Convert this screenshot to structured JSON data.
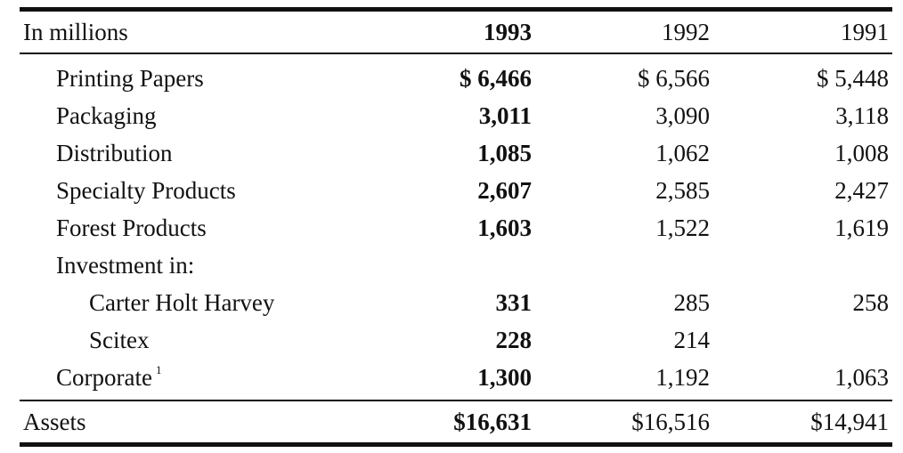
{
  "table": {
    "header": {
      "label": "In millions",
      "col_1993": "1993",
      "col_1992": "1992",
      "col_1991": "1991"
    },
    "rows": [
      {
        "label": "Printing Papers",
        "v1993": "$  6,466",
        "v1992": "$  6,566",
        "v1991": "$  5,448"
      },
      {
        "label": "Packaging",
        "v1993": "3,011",
        "v1992": "3,090",
        "v1991": "3,118"
      },
      {
        "label": "Distribution",
        "v1993": "1,085",
        "v1992": "1,062",
        "v1991": "1,008"
      },
      {
        "label": "Specialty Products",
        "v1993": "2,607",
        "v1992": "2,585",
        "v1991": "2,427"
      },
      {
        "label": "Forest Products",
        "v1993": "1,603",
        "v1992": "1,522",
        "v1991": "1,619"
      },
      {
        "label": "Investment in:",
        "v1993": "",
        "v1992": "",
        "v1991": ""
      },
      {
        "label": "Carter Holt Harvey",
        "v1993": "331",
        "v1992": "285",
        "v1991": "258"
      },
      {
        "label": "Scitex",
        "v1993": "228",
        "v1992": "214",
        "v1991": ""
      },
      {
        "label": "Corporate",
        "footnote": "1",
        "v1993": "1,300",
        "v1992": "1,192",
        "v1991": "1,063"
      }
    ],
    "total": {
      "label": "Assets",
      "v1993": "$16,631",
      "v1992": "$16,516",
      "v1991": "$14,941"
    }
  }
}
